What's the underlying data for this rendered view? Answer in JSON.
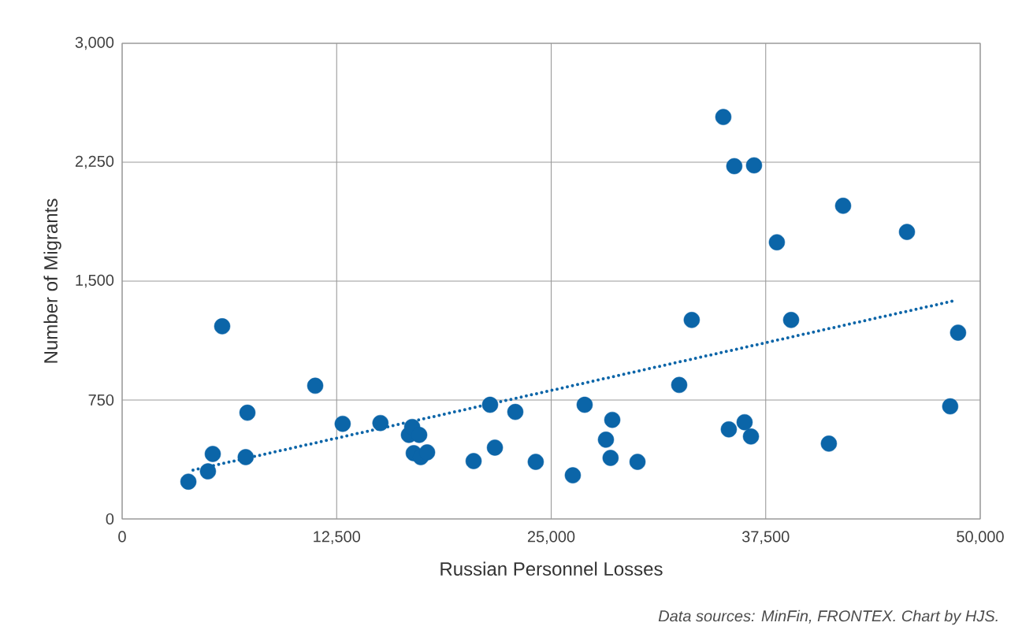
{
  "chart_data": {
    "type": "scatter",
    "xlabel": "Russian Personnel Losses",
    "ylabel": "Number of Migrants",
    "annotations": [
      "Data sources: MinFin, FRONTEX. Chart by HJS."
    ],
    "xlim": [
      0,
      50000
    ],
    "ylim": [
      0,
      3000
    ],
    "xticks": [
      0,
      {
        "value": 12500,
        "label": "12,500"
      },
      {
        "value": 25000,
        "label": "25,000"
      },
      {
        "value": 37500,
        "label": "37,500"
      },
      {
        "value": 50000,
        "label": "50,000"
      }
    ],
    "yticks": [
      0,
      750,
      {
        "value": 1500,
        "label": "1,500"
      },
      {
        "value": 2250,
        "label": "2,250"
      },
      {
        "value": 3000,
        "label": "3,000"
      }
    ],
    "grid": true,
    "series": [
      {
        "marker": "circle",
        "color": "#0b65a8",
        "x": [
          3860,
          5000,
          5280,
          5830,
          7200,
          7300,
          11250,
          12850,
          15050,
          16710,
          16900,
          16990,
          17310,
          17400,
          17770,
          20480,
          21440,
          21720,
          22910,
          24100,
          26260,
          26950,
          28190,
          28460,
          28560,
          30030,
          32460,
          33190,
          35030,
          35350,
          35670,
          36270,
          36640,
          36820,
          38150,
          38980,
          41180,
          42010,
          45730,
          48250,
          48710
        ],
        "values": [
          235,
          300,
          410,
          1215,
          390,
          670,
          840,
          600,
          605,
          530,
          580,
          415,
          530,
          390,
          420,
          365,
          720,
          450,
          675,
          360,
          275,
          720,
          500,
          385,
          625,
          360,
          845,
          1255,
          2535,
          565,
          2225,
          610,
          520,
          2230,
          1745,
          1255,
          475,
          1975,
          1810,
          710,
          1175
        ]
      },
      {
        "type": "line",
        "marker": "none",
        "color": "#0b65a8",
        "line_style": "dotted",
        "x": [
          4130,
          48480
        ],
        "values": [
          308,
          1376
        ]
      }
    ]
  }
}
